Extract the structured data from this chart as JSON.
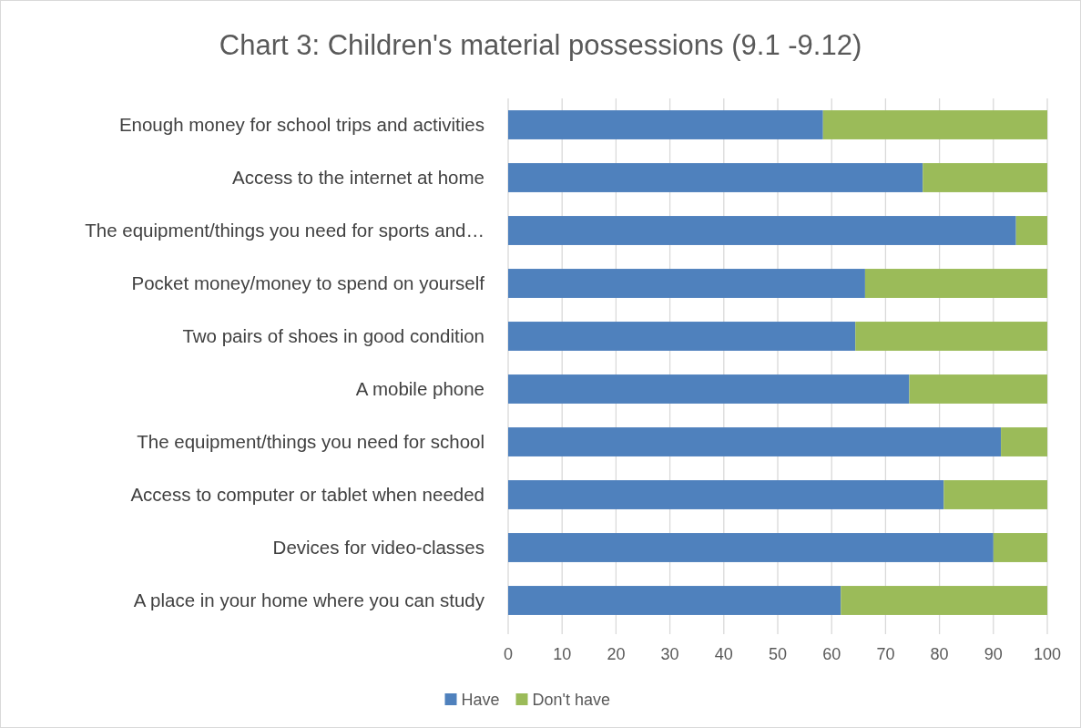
{
  "chart_data": {
    "type": "bar",
    "orientation": "horizontal",
    "stacked": true,
    "title": "Chart 3: Children's material possessions (9.1 -9.12)",
    "categories": [
      "Enough money for school trips and activities",
      "Access to the internet at home",
      "The equipment/things you need for sports and…",
      "Pocket money/money to spend on yourself",
      "Two pairs of shoes in good condition",
      "A mobile phone",
      "The equipment/things you need for school",
      "Access to computer or tablet when needed",
      "Devices for video-classes",
      "A place in your home where you can study"
    ],
    "series": [
      {
        "name": "Have",
        "color": "#4f81bd",
        "values": [
          58.4,
          76.9,
          94.2,
          66.2,
          64.4,
          74.4,
          91.4,
          80.8,
          90.0,
          61.7
        ]
      },
      {
        "name": "Don't have",
        "color": "#9bbb59",
        "values": [
          41.6,
          23.1,
          5.8,
          33.8,
          35.6,
          25.6,
          8.6,
          19.2,
          10.0,
          38.3
        ]
      }
    ],
    "xlim": [
      0,
      100
    ],
    "xticks": [
      0,
      10,
      20,
      30,
      40,
      50,
      60,
      70,
      80,
      90,
      100
    ],
    "grid": "x",
    "legend": "bottom"
  }
}
